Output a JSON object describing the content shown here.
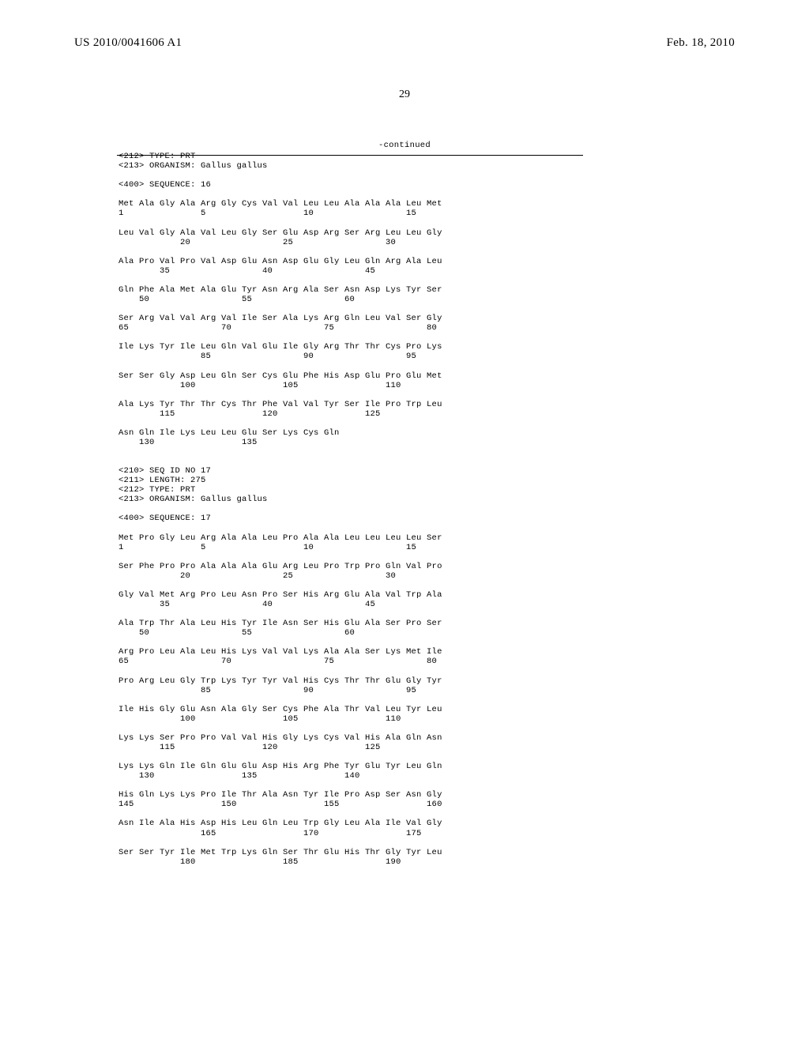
{
  "header": {
    "pubnum": "US 2010/0041606 A1",
    "pubdate": "Feb. 18, 2010"
  },
  "page_number": "29",
  "continued_label": "-continued",
  "sequence16": {
    "meta": [
      "<212> TYPE: PRT",
      "<213> ORGANISM: Gallus gallus",
      "",
      "<400> SEQUENCE: 16"
    ],
    "rows": [
      {
        "aa": "Met Ala Gly Ala Arg Gly Cys Val Val Leu Leu Ala Ala Ala Leu Met",
        "num": "1               5                   10                  15"
      },
      {
        "aa": "Leu Val Gly Ala Val Leu Gly Ser Glu Asp Arg Ser Arg Leu Leu Gly",
        "num": "            20                  25                  30"
      },
      {
        "aa": "Ala Pro Val Pro Val Asp Glu Asn Asp Glu Gly Leu Gln Arg Ala Leu",
        "num": "        35                  40                  45"
      },
      {
        "aa": "Gln Phe Ala Met Ala Glu Tyr Asn Arg Ala Ser Asn Asp Lys Tyr Ser",
        "num": "    50                  55                  60"
      },
      {
        "aa": "Ser Arg Val Val Arg Val Ile Ser Ala Lys Arg Gln Leu Val Ser Gly",
        "num": "65                  70                  75                  80"
      },
      {
        "aa": "Ile Lys Tyr Ile Leu Gln Val Glu Ile Gly Arg Thr Thr Cys Pro Lys",
        "num": "                85                  90                  95"
      },
      {
        "aa": "Ser Ser Gly Asp Leu Gln Ser Cys Glu Phe His Asp Glu Pro Glu Met",
        "num": "            100                 105                 110"
      },
      {
        "aa": "Ala Lys Tyr Thr Thr Cys Thr Phe Val Val Tyr Ser Ile Pro Trp Leu",
        "num": "        115                 120                 125"
      },
      {
        "aa": "Asn Gln Ile Lys Leu Leu Glu Ser Lys Cys Gln",
        "num": "    130                 135"
      }
    ]
  },
  "sequence17": {
    "meta": [
      "<210> SEQ ID NO 17",
      "<211> LENGTH: 275",
      "<212> TYPE: PRT",
      "<213> ORGANISM: Gallus gallus",
      "",
      "<400> SEQUENCE: 17"
    ],
    "rows": [
      {
        "aa": "Met Pro Gly Leu Arg Ala Ala Leu Pro Ala Ala Leu Leu Leu Leu Ser",
        "num": "1               5                   10                  15"
      },
      {
        "aa": "Ser Phe Pro Pro Ala Ala Ala Glu Arg Leu Pro Trp Pro Gln Val Pro",
        "num": "            20                  25                  30"
      },
      {
        "aa": "Gly Val Met Arg Pro Leu Asn Pro Ser His Arg Glu Ala Val Trp Ala",
        "num": "        35                  40                  45"
      },
      {
        "aa": "Ala Trp Thr Ala Leu His Tyr Ile Asn Ser His Glu Ala Ser Pro Ser",
        "num": "    50                  55                  60"
      },
      {
        "aa": "Arg Pro Leu Ala Leu His Lys Val Val Lys Ala Ala Ser Lys Met Ile",
        "num": "65                  70                  75                  80"
      },
      {
        "aa": "Pro Arg Leu Gly Trp Lys Tyr Tyr Val His Cys Thr Thr Glu Gly Tyr",
        "num": "                85                  90                  95"
      },
      {
        "aa": "Ile His Gly Glu Asn Ala Gly Ser Cys Phe Ala Thr Val Leu Tyr Leu",
        "num": "            100                 105                 110"
      },
      {
        "aa": "Lys Lys Ser Pro Pro Val Val His Gly Lys Cys Val His Ala Gln Asn",
        "num": "        115                 120                 125"
      },
      {
        "aa": "Lys Lys Gln Ile Gln Glu Glu Asp His Arg Phe Tyr Glu Tyr Leu Gln",
        "num": "    130                 135                 140"
      },
      {
        "aa": "His Gln Lys Lys Pro Ile Thr Ala Asn Tyr Ile Pro Asp Ser Asn Gly",
        "num": "145                 150                 155                 160"
      },
      {
        "aa": "Asn Ile Ala His Asp His Leu Gln Leu Trp Gly Leu Ala Ile Val Gly",
        "num": "                165                 170                 175"
      },
      {
        "aa": "Ser Ser Tyr Ile Met Trp Lys Gln Ser Thr Glu His Thr Gly Tyr Leu",
        "num": "            180                 185                 190"
      }
    ]
  }
}
